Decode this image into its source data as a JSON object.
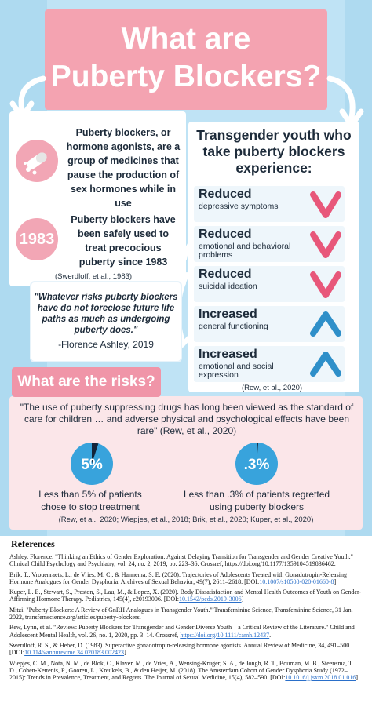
{
  "title": {
    "line1": "What are",
    "line2": "Puberty Blockers?"
  },
  "left": {
    "definition": "Puberty blockers, or hormone agonists, are a group of medicines that pause the production of sex hormones while in use",
    "badge_year": "1983",
    "safety": "Puberty blockers have been safely used to treat precocious puberty since 1983",
    "cite": "(Swerdloff, et al., 1983)"
  },
  "quote": {
    "text": "\"Whatever risks puberty blockers have do not foreclose future life paths as much as undergoing puberty does.\"",
    "author": "-Florence Ashley, 2019"
  },
  "right": {
    "heading": "Transgender youth who take puberty blockers experience:",
    "rows": [
      {
        "title": "Reduced",
        "sub": "depressive symptoms",
        "icon": "down-chevron-icon",
        "color": "#e8577a"
      },
      {
        "title": "Reduced",
        "sub": "emotional and behavioral problems",
        "icon": "down-chevron-icon",
        "color": "#e8577a"
      },
      {
        "title": "Reduced",
        "sub": "suicidal ideation",
        "icon": "down-chevron-icon",
        "color": "#e8577a"
      },
      {
        "title": "Increased",
        "sub": "general functioning",
        "icon": "up-chevron-icon",
        "color": "#2e8fc9"
      },
      {
        "title": "Increased",
        "sub": "emotional and social expression",
        "icon": "up-chevron-icon",
        "color": "#2e8fc9"
      }
    ],
    "cite": "(Rew, et al., 2020)"
  },
  "risks": {
    "heading": "What are the risks?",
    "quote": "\"The use of puberty suppressing drugs has long been viewed as the standard of care for children … and adverse physical and psychological effects have been rare\" (Rew, et al., 2020)",
    "stats": [
      {
        "value": "5%",
        "fraction": 0.05,
        "label": "Less than 5% of patients chose to stop treatment"
      },
      {
        "value": ".3%",
        "fraction": 0.003,
        "label": "Less than .3% of patients regretted using puberty blockers"
      }
    ],
    "cite": "(Rew, et al., 2020; Wiepjes, et al., 2018; Brik, et al., 2020; Kuper, et al., 2020)"
  },
  "references": {
    "heading": "References",
    "items": [
      {
        "text": "Ashley, Florence. \"Thinking an Ethics of Gender Exploration: Against Delaying Transition for Transgender and Gender Creative Youth.\" Clinical Child Psychology and Psychiatry, vol. 24, no. 2, 2019, pp. 223–36. Crossref, https://doi.org/10.1177/1359104519836462.",
        "link": ""
      },
      {
        "text": "Brik, T., Vrouenraets, L., de Vries, M. C., & Hannema, S. E. (2020). Trajectories of Adolescents Treated with Gonadotropin-Releasing Hormone Analogues for Gender Dysphoria. Archives of Sexual Behavior, 49(7), 2611–2618. [DOI:",
        "link": "10.1007/s10508-020-01660-8",
        "tail": "]"
      },
      {
        "text": "Kuper, L. E., Stewart, S., Preston, S., Lau, M., & Lopez, X. (2020). Body Dissatisfaction and Mental Health Outcomes of Youth on Gender-Affirming Hormone Therapy. Pediatrics, 145(4), e20193006. [DOI:",
        "link": "10.1542/peds.2019-3006",
        "tail": "]"
      },
      {
        "text": "Mitzi. \"Puberty Blockers: A Review of GnRH Analogues in Transgender Youth.\" Transfeminine Science, Transfeminine Science, 31 Jan. 2022, transfemscience.org/articles/puberty-blockers.",
        "link": ""
      },
      {
        "text": "Rew, Lynn, et al. \"Review: Puberty Blockers for Transgender and Gender Diverse Youth—a Critical Review of the Literature.\" Child and Adolescent Mental Health, vol. 26, no. 1, 2020, pp. 3–14. Crossref, ",
        "link": "https://doi.org/10.1111/camh.12437",
        "tail": "."
      },
      {
        "text": "Swerdloff, R. S., & Heber, D. (1983). Superactive gonadotropin-releasing hormone agonists. Annual Review of Medicine, 34, 491–500. [DOI:",
        "link": "10.1146/annurev.me.34.020183.002423",
        "tail": "]"
      },
      {
        "text": "Wiepjes, C. M., Nota, N. M., de Blok, C., Klaver, M., de Vries, A., Wensing-Kruger, S. A., de Jongh, R. T., Bouman, M. B., Steensma, T. D., Cohen-Kettenis, P., Gooren, L., Kreukels, B., & den Heijer, M. (2018). The Amsterdam Cohort of Gender Dysphoria Study (1972–2015): Trends in Prevalence, Treatment, and Regrets. The Journal of Sexual Medicine, 15(4), 582–590. [DOI:",
        "link": "10.1016/j.jsxm.2018.01.016",
        "tail": "]"
      }
    ]
  },
  "colors": {
    "pink": "#f4a3b1",
    "light_blue": "#bfe3f5",
    "navy": "#1d2b3a",
    "down": "#e8577a",
    "up": "#2e8fc9"
  }
}
